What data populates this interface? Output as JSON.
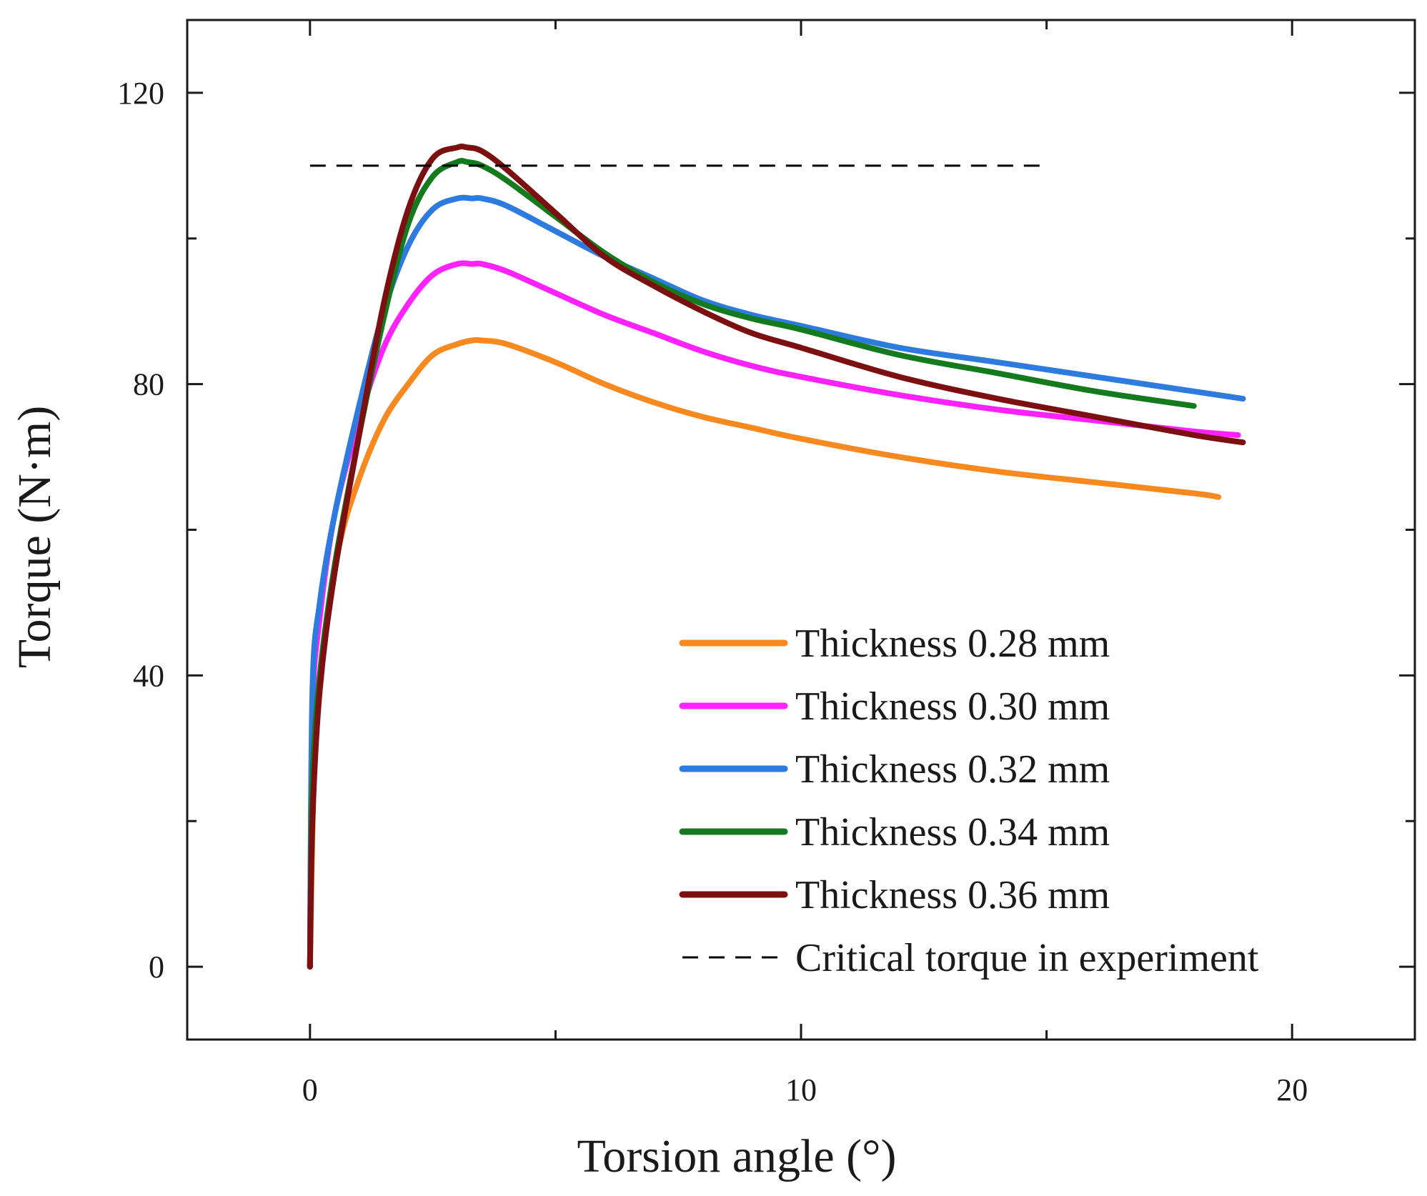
{
  "chart_data": {
    "type": "line",
    "title": "",
    "xlabel": "Torsion angle (°)",
    "ylabel": "Torque (N·m)",
    "xlim": [
      -2.5,
      22.5
    ],
    "ylim": [
      -10,
      130
    ],
    "xticks": [
      0,
      10,
      20
    ],
    "xticklabels": [
      "0",
      "10",
      "20"
    ],
    "xminorticks": [
      5,
      15
    ],
    "yticks": [
      0,
      40,
      80,
      120
    ],
    "yticklabels": [
      "0",
      "40",
      "80",
      "120"
    ],
    "yminorticks": [
      20,
      60,
      100
    ],
    "grid": false,
    "legend_position": "bottom-right",
    "series": [
      {
        "name": "Thickness 0.28 mm",
        "color": "#f7891f",
        "style": "solid",
        "x": [
          0,
          0.1,
          0.3,
          0.6,
          1.0,
          1.5,
          2.0,
          2.5,
          3.0,
          3.3,
          3.5,
          4.0,
          5.0,
          6.0,
          7.0,
          8.0,
          9.0,
          10.0,
          12.0,
          14.0,
          16.0,
          18.0,
          18.5
        ],
        "y": [
          0,
          30,
          45,
          58,
          67,
          75,
          80,
          84,
          85.5,
          86,
          86,
          85.5,
          83,
          80,
          77.5,
          75.5,
          74,
          72.5,
          70,
          68,
          66.5,
          65,
          64.5
        ]
      },
      {
        "name": "Thickness 0.30 mm",
        "color": "#ff22ff",
        "style": "solid",
        "x": [
          0,
          0.05,
          0.2,
          0.5,
          1.0,
          1.5,
          2.0,
          2.5,
          3.0,
          3.3,
          3.5,
          4.0,
          5.0,
          6.0,
          7.0,
          8.0,
          9.0,
          10.0,
          12.0,
          14.0,
          16.0,
          18.0,
          18.9
        ],
        "y": [
          0,
          35,
          48,
          62,
          75,
          85,
          91,
          95,
          96.5,
          96.5,
          96.5,
          95.5,
          92.5,
          89.5,
          87,
          84.5,
          82.5,
          81,
          78.5,
          76.5,
          75,
          73.5,
          73
        ]
      },
      {
        "name": "Thickness 0.32 mm",
        "color": "#2e7be0",
        "style": "solid",
        "x": [
          0,
          0.05,
          0.2,
          0.5,
          1.0,
          1.5,
          2.0,
          2.5,
          3.0,
          3.3,
          3.5,
          4.0,
          5.0,
          6.0,
          7.0,
          8.0,
          9.0,
          10.0,
          12.0,
          14.0,
          16.0,
          18.0,
          19.0
        ],
        "y": [
          0,
          38,
          50,
          62,
          77,
          90,
          99,
          104,
          105.5,
          105.5,
          105.5,
          104.5,
          101,
          97.5,
          94.5,
          91.5,
          89.5,
          88,
          85,
          83,
          81,
          79,
          78
        ]
      },
      {
        "name": "Thickness 0.34 mm",
        "color": "#137a1d",
        "style": "solid",
        "x": [
          0,
          0.05,
          0.2,
          0.5,
          1.0,
          1.5,
          2.0,
          2.5,
          3.0,
          3.2,
          3.5,
          4.0,
          5.0,
          6.0,
          7.0,
          8.0,
          9.0,
          10.0,
          12.0,
          14.0,
          16.0,
          18.0
        ],
        "y": [
          0,
          25,
          40,
          55,
          73,
          89,
          102,
          108.5,
          110.5,
          110.5,
          110,
          108,
          103,
          98,
          94,
          91,
          89,
          87.5,
          84,
          81.5,
          79,
          77
        ]
      },
      {
        "name": "Thickness 0.36 mm",
        "color": "#7c1010",
        "style": "solid",
        "x": [
          0,
          0.05,
          0.2,
          0.5,
          1.0,
          1.5,
          2.0,
          2.5,
          3.0,
          3.2,
          3.5,
          4.0,
          5.0,
          6.0,
          7.0,
          8.0,
          9.0,
          10.0,
          12.0,
          14.0,
          16.0,
          18.0,
          19.0
        ],
        "y": [
          0,
          20,
          38,
          54,
          73,
          91,
          104,
          111,
          112.5,
          112.5,
          112,
          109.5,
          103.5,
          97.5,
          93.5,
          90,
          87,
          85,
          81,
          78,
          75.5,
          73,
          72
        ]
      },
      {
        "name": "Critical torque in experiment",
        "color": "#000000",
        "style": "dashed",
        "x": [
          0,
          15
        ],
        "y": [
          110,
          110
        ]
      }
    ]
  }
}
